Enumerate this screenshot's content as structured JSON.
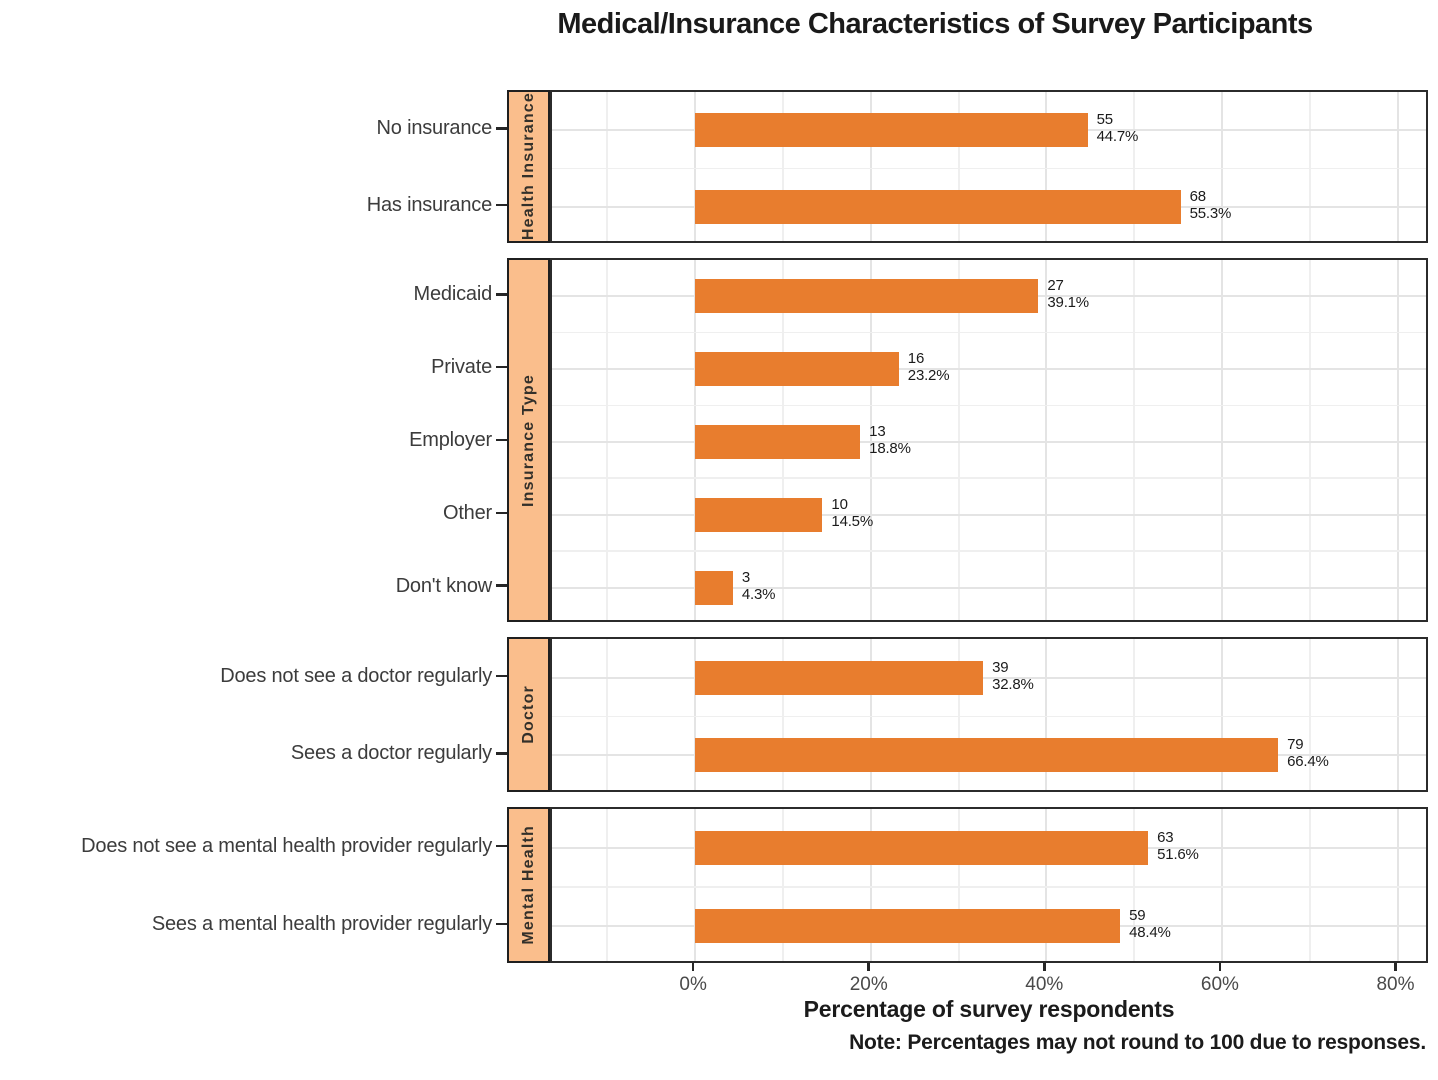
{
  "title": "Medical/Insurance Characteristics of Survey Participants",
  "colors": {
    "bar": "#E87D2E",
    "strip_fill": "#FABE8C",
    "strip_border": "#1F1F1F",
    "panel_border": "#2B2B2B",
    "grid_major": "#E4E4E4",
    "grid_minor": "#EFEFEF",
    "axis_tick": "#262626",
    "category_text": "#3C3C3C",
    "tick_label_text": "#4A4A4A",
    "value_text": "#1B1B1B"
  },
  "chart_data": {
    "type": "bar",
    "orientation": "horizontal",
    "title": "Medical/Insurance Characteristics of Survey Participants",
    "xlabel": "Percentage of survey respondents",
    "note": "Note: Percentages may not round to 100 due to responses.",
    "grid": true,
    "legend": "none",
    "xlim_pct": [
      -16.3,
      83.7
    ],
    "x_ticks_pct": [
      0,
      20,
      40,
      60,
      80
    ],
    "x_tick_labels": [
      "0%",
      "20%",
      "40%",
      "60%",
      "80%"
    ],
    "facets": [
      {
        "label": "Health Insurance",
        "rows": [
          {
            "category": "No insurance",
            "count": 55,
            "percent": 44.7
          },
          {
            "category": "Has insurance",
            "count": 68,
            "percent": 55.3
          }
        ]
      },
      {
        "label": "Insurance Type",
        "rows": [
          {
            "category": "Medicaid",
            "count": 27,
            "percent": 39.1
          },
          {
            "category": "Private",
            "count": 16,
            "percent": 23.2
          },
          {
            "category": "Employer",
            "count": 13,
            "percent": 18.8
          },
          {
            "category": "Other",
            "count": 10,
            "percent": 14.5
          },
          {
            "category": "Don't know",
            "count": 3,
            "percent": 4.3
          }
        ]
      },
      {
        "label": "Doctor",
        "rows": [
          {
            "category": "Does not see a doctor regularly",
            "count": 39,
            "percent": 32.8
          },
          {
            "category": "Sees a doctor regularly",
            "count": 79,
            "percent": 66.4
          }
        ]
      },
      {
        "label": "Mental Health",
        "rows": [
          {
            "category": "Does not see a mental health provider regularly",
            "count": 63,
            "percent": 51.6
          },
          {
            "category": "Sees a mental health provider regularly",
            "count": 59,
            "percent": 48.4
          }
        ]
      }
    ]
  }
}
